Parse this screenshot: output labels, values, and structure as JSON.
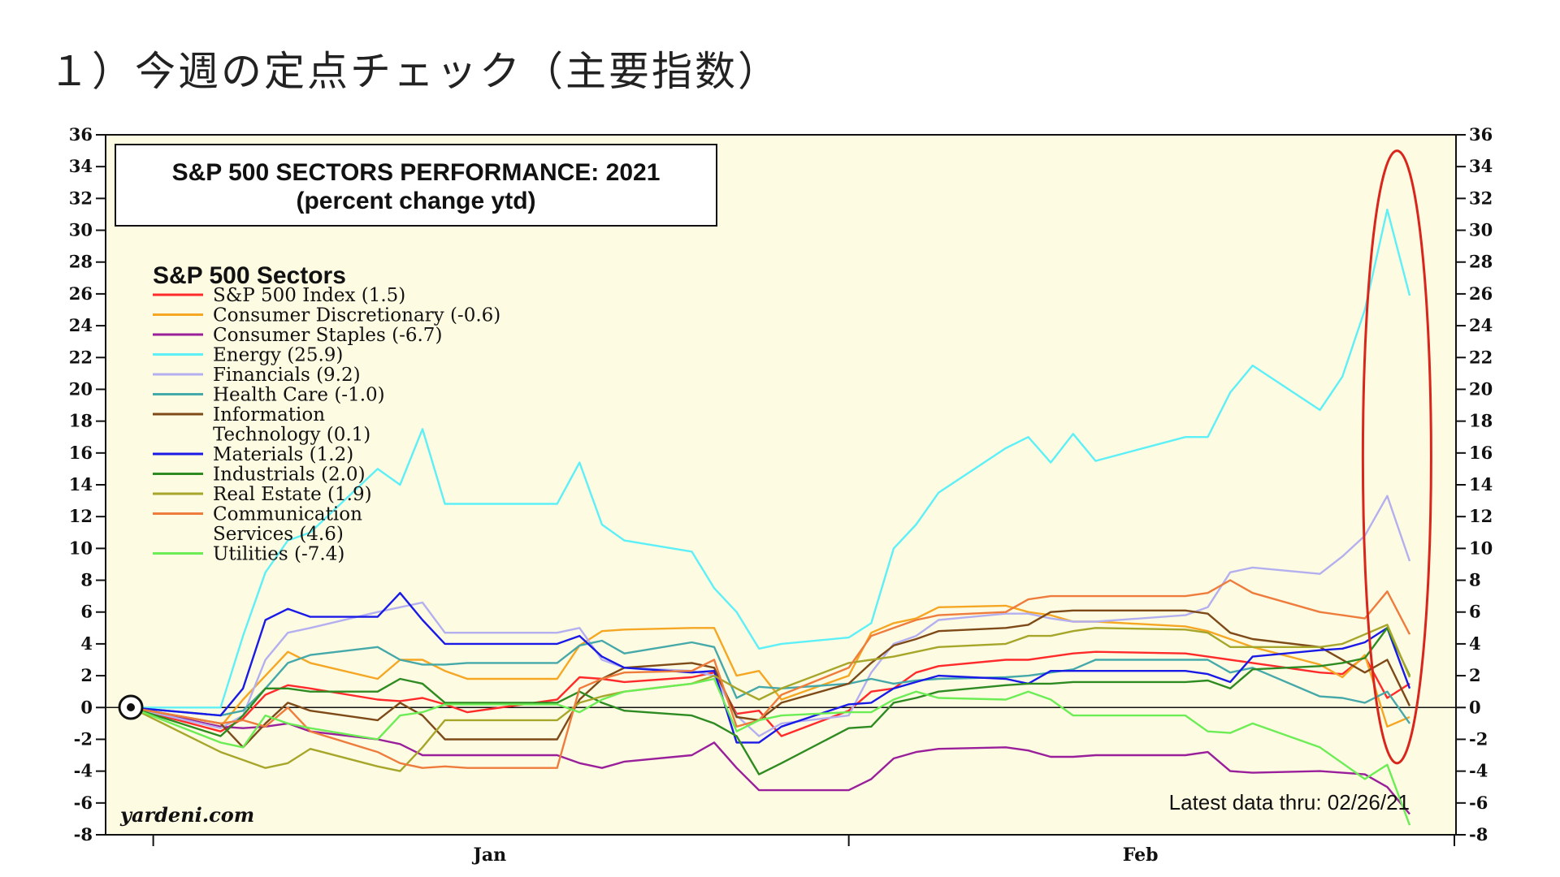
{
  "heading": "１）今週の定点チェック（主要指数）",
  "chart_data": {
    "type": "line",
    "title": "S&P 500 SECTORS PERFORMANCE: 2021",
    "subtitle": "(percent change ytd)",
    "legend_title": "S&P 500 Sectors",
    "legend_placement": "top-left",
    "source": "yardeni.com",
    "note": "Latest data thru: 02/26/21",
    "x_month_labels": [
      "Jan",
      "Feb"
    ],
    "ylim": [
      -8,
      36
    ],
    "yticks": [
      -8,
      -6,
      -4,
      -2,
      0,
      2,
      4,
      6,
      8,
      10,
      12,
      14,
      16,
      18,
      20,
      22,
      24,
      26,
      28,
      30,
      32,
      34,
      36
    ],
    "grid": false,
    "x": [
      "2020-12-31",
      "2021-01-04",
      "2021-01-05",
      "2021-01-06",
      "2021-01-07",
      "2021-01-08",
      "2021-01-11",
      "2021-01-12",
      "2021-01-13",
      "2021-01-14",
      "2021-01-15",
      "2021-01-19",
      "2021-01-20",
      "2021-01-21",
      "2021-01-22",
      "2021-01-25",
      "2021-01-26",
      "2021-01-27",
      "2021-01-28",
      "2021-01-29",
      "2021-02-01",
      "2021-02-02",
      "2021-02-03",
      "2021-02-04",
      "2021-02-05",
      "2021-02-08",
      "2021-02-09",
      "2021-02-10",
      "2021-02-11",
      "2021-02-12",
      "2021-02-16",
      "2021-02-17",
      "2021-02-18",
      "2021-02-19",
      "2021-02-22",
      "2021-02-23",
      "2021-02-24",
      "2021-02-25",
      "2021-02-26"
    ],
    "series": [
      {
        "name": "S&P 500 Index (1.5)",
        "color": "#ff2a2a",
        "values": [
          0,
          -1.5,
          -0.7,
          0.8,
          1.4,
          1.2,
          0.5,
          0.4,
          0.6,
          0.2,
          -0.3,
          0.5,
          1.9,
          1.8,
          1.6,
          1.9,
          2.2,
          -0.4,
          -0.2,
          -1.8,
          -0.2,
          1.0,
          1.2,
          2.2,
          2.6,
          3.0,
          3.0,
          3.2,
          3.4,
          3.5,
          3.4,
          3.2,
          3.0,
          2.8,
          2.2,
          2.1,
          3.2,
          0.6,
          1.5
        ]
      },
      {
        "name": "Consumer Discretionary (-0.6)",
        "color": "#f5a623",
        "values": [
          0,
          -1.2,
          0.5,
          2.0,
          3.5,
          2.8,
          1.8,
          3.0,
          3.0,
          2.3,
          1.8,
          1.8,
          3.9,
          4.8,
          4.9,
          5.0,
          5.0,
          2.0,
          2.3,
          0.5,
          2.0,
          4.7,
          5.3,
          5.6,
          6.3,
          6.4,
          6.0,
          5.8,
          5.4,
          5.4,
          5.1,
          4.8,
          4.3,
          3.8,
          2.7,
          1.9,
          3.3,
          -1.2,
          -0.6
        ]
      },
      {
        "name": "Consumer Staples (-6.7)",
        "color": "#9a1f9a",
        "values": [
          0,
          -1.2,
          -1.3,
          -1.2,
          -1.0,
          -1.5,
          -2.0,
          -2.3,
          -3.0,
          -3.0,
          -3.0,
          -3.0,
          -3.5,
          -3.8,
          -3.4,
          -3.0,
          -2.2,
          -3.8,
          -5.2,
          -5.2,
          -5.2,
          -4.5,
          -3.2,
          -2.8,
          -2.6,
          -2.5,
          -2.7,
          -3.1,
          -3.1,
          -3.0,
          -3.0,
          -2.8,
          -4.0,
          -4.1,
          -4.0,
          -4.1,
          -4.2,
          -5.0,
          -6.7
        ]
      },
      {
        "name": "Energy (25.9)",
        "color": "#5ef0f7",
        "values": [
          0,
          0,
          4.5,
          8.5,
          10.5,
          11.0,
          15.0,
          14.0,
          17.5,
          12.8,
          12.8,
          12.8,
          15.4,
          11.5,
          10.5,
          9.8,
          7.5,
          6.0,
          3.7,
          4.0,
          4.4,
          5.3,
          10.0,
          11.5,
          13.5,
          16.3,
          17.0,
          15.4,
          17.2,
          15.5,
          17.0,
          17.0,
          19.8,
          21.5,
          18.7,
          20.8,
          25.0,
          31.3,
          25.9
        ]
      },
      {
        "name": "Financials (9.2)",
        "color": "#b4b0f0",
        "values": [
          0,
          -1.3,
          -0.5,
          3.0,
          4.7,
          5.0,
          6.0,
          6.3,
          6.6,
          4.7,
          4.7,
          4.7,
          5.0,
          3.0,
          2.5,
          2.3,
          2.0,
          -0.5,
          -1.8,
          -1.0,
          -0.5,
          2.2,
          4.0,
          4.5,
          5.5,
          5.9,
          5.9,
          5.6,
          5.4,
          5.4,
          5.8,
          6.3,
          8.5,
          8.8,
          8.4,
          9.5,
          10.8,
          13.3,
          9.2
        ]
      },
      {
        "name": "Health Care (-1.0)",
        "color": "#45a9a9",
        "values": [
          0,
          -0.5,
          -0.2,
          1.2,
          2.8,
          3.3,
          3.8,
          3.0,
          2.7,
          2.7,
          2.8,
          2.8,
          3.9,
          4.2,
          3.4,
          4.1,
          3.8,
          0.6,
          1.3,
          1.2,
          1.5,
          1.8,
          1.5,
          1.7,
          1.8,
          1.9,
          2.0,
          2.2,
          2.4,
          3.0,
          3.0,
          3.0,
          2.2,
          2.5,
          0.7,
          0.6,
          0.3,
          1.0,
          -1.0
        ]
      },
      {
        "name": "Information Technology (0.1)",
        "color": "#7d4a18",
        "values": [
          0,
          -1.0,
          -2.5,
          -1.0,
          0.3,
          -0.2,
          -0.8,
          0.3,
          -0.5,
          -2.0,
          -2.0,
          -2.0,
          0.5,
          1.8,
          2.5,
          2.8,
          2.5,
          -0.6,
          -0.8,
          0.3,
          1.5,
          2.8,
          3.9,
          4.3,
          4.8,
          5.0,
          5.2,
          6.0,
          6.1,
          6.1,
          6.1,
          5.9,
          4.7,
          4.3,
          3.8,
          3.0,
          2.2,
          3.0,
          0.1
        ]
      },
      {
        "name": "Materials (1.2)",
        "color": "#1a1ae6",
        "values": [
          0,
          -0.5,
          1.2,
          5.5,
          6.2,
          5.7,
          5.7,
          7.2,
          5.5,
          4.0,
          4.0,
          4.0,
          4.5,
          3.2,
          2.5,
          2.2,
          2.3,
          -2.2,
          -2.2,
          -1.2,
          0.2,
          0.3,
          1.2,
          1.6,
          2.0,
          1.8,
          1.5,
          2.3,
          2.3,
          2.3,
          2.3,
          2.1,
          1.6,
          3.2,
          3.6,
          3.7,
          4.1,
          5.0,
          1.2
        ]
      },
      {
        "name": "Industrials (2.0)",
        "color": "#2e8b22",
        "values": [
          0,
          -1.8,
          -0.5,
          1.2,
          1.2,
          1.0,
          1.0,
          1.8,
          1.5,
          0.3,
          0.3,
          0.3,
          1.0,
          0.3,
          -0.2,
          -0.5,
          -1.0,
          -1.8,
          -4.2,
          -3.5,
          -1.3,
          -1.2,
          0.3,
          0.6,
          1.0,
          1.4,
          1.5,
          1.5,
          1.6,
          1.6,
          1.6,
          1.7,
          1.2,
          2.4,
          2.6,
          2.8,
          3.1,
          5.0,
          2.0
        ]
      },
      {
        "name": "Real Estate (1.9)",
        "color": "#a6a62a",
        "values": [
          0,
          -2.8,
          -3.3,
          -3.8,
          -3.5,
          -2.6,
          -3.7,
          -4.0,
          -2.5,
          -0.8,
          -0.8,
          -0.8,
          0.3,
          0.7,
          1.0,
          1.5,
          2.0,
          1.2,
          0.5,
          1.2,
          2.8,
          3.0,
          3.2,
          3.5,
          3.8,
          4.0,
          4.5,
          4.5,
          4.8,
          5.0,
          4.9,
          4.7,
          3.8,
          3.8,
          3.8,
          4.0,
          4.6,
          5.2,
          1.9
        ]
      },
      {
        "name": "Communication Services (4.6)",
        "color": "#ee7c3c",
        "values": [
          0,
          -1.0,
          -0.8,
          -1.2,
          0.0,
          -1.5,
          -2.8,
          -3.5,
          -3.8,
          -3.7,
          -3.8,
          -3.8,
          1.2,
          1.8,
          2.2,
          2.3,
          3.0,
          -1.2,
          -0.8,
          0.8,
          2.5,
          4.5,
          5.0,
          5.5,
          5.8,
          6.0,
          6.8,
          7.0,
          7.0,
          7.0,
          7.0,
          7.2,
          8.0,
          7.2,
          6.0,
          5.8,
          5.6,
          7.3,
          4.6
        ]
      },
      {
        "name": "Utilities (-7.4)",
        "color": "#6ced55",
        "values": [
          0,
          -2.2,
          -2.5,
          -0.5,
          -1.0,
          -1.3,
          -2.0,
          -0.5,
          -0.3,
          0.2,
          0.2,
          0.2,
          -0.3,
          0.5,
          1.0,
          1.5,
          1.8,
          -1.5,
          -0.8,
          -0.5,
          -0.3,
          -0.3,
          0.5,
          1.0,
          0.6,
          0.5,
          1.0,
          0.5,
          -0.5,
          -0.5,
          -0.5,
          -1.5,
          -1.6,
          -1.0,
          -2.5,
          -3.5,
          -4.5,
          -3.6,
          -7.4
        ]
      }
    ]
  },
  "legend_rows": [
    {
      "series": 0,
      "lines": [
        "S&P 500 Index (1.5)"
      ]
    },
    {
      "series": 1,
      "lines": [
        "Consumer Discretionary (-0.6)"
      ]
    },
    {
      "series": 2,
      "lines": [
        "Consumer Staples (-6.7)"
      ]
    },
    {
      "series": 3,
      "lines": [
        "Energy (25.9)"
      ]
    },
    {
      "series": 4,
      "lines": [
        "Financials (9.2)"
      ]
    },
    {
      "series": 5,
      "lines": [
        "Health Care (-1.0)"
      ]
    },
    {
      "series": 6,
      "lines": [
        "Information",
        "Technology (0.1)"
      ]
    },
    {
      "series": 7,
      "lines": [
        "Materials (1.2)"
      ]
    },
    {
      "series": 8,
      "lines": [
        "Industrials (2.0)"
      ]
    },
    {
      "series": 9,
      "lines": [
        "Real Estate (1.9)"
      ]
    },
    {
      "series": 10,
      "lines": [
        "Communication",
        "Services (4.6)"
      ]
    },
    {
      "series": 11,
      "lines": [
        "Utilities (-7.4)"
      ]
    }
  ],
  "annotation": {
    "shape": "ellipse",
    "color": "#d9261c",
    "highlights_from_x": "2021-02-24"
  }
}
